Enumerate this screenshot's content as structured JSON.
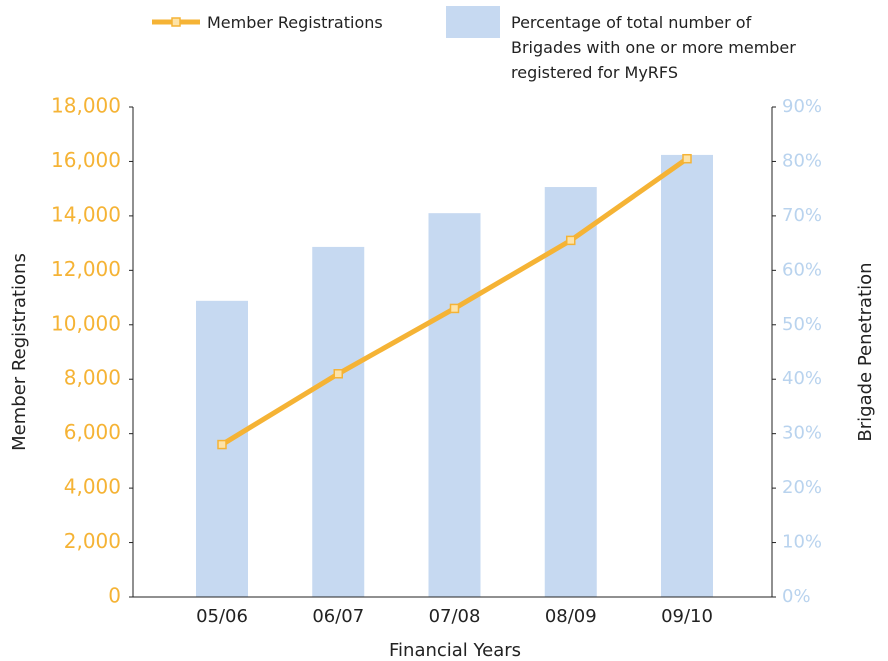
{
  "chart_data": {
    "type": "bar-line",
    "categories": [
      "05/06",
      "06/07",
      "07/08",
      "08/09",
      "09/10"
    ],
    "series": [
      {
        "name": "Member Registrations",
        "type": "line",
        "color": "#f5b335",
        "axis": "y",
        "values": [
          5600,
          8200,
          10600,
          13100,
          16100
        ]
      },
      {
        "name": "Percentage of total number of Brigades with one or more member registered for MyRFS",
        "type": "bar",
        "color": "#c6d9f1",
        "axis": "y2",
        "values": [
          54.4,
          64.3,
          70.5,
          75.3,
          81.2
        ]
      }
    ],
    "xlabel": "Financial Years",
    "ylabel": "Member Registrations",
    "y2label": "Brigade Penetration",
    "ylim": [
      0,
      18000
    ],
    "yticks": [
      0,
      {
        "value": 2000,
        "label": "2,000"
      },
      {
        "value": 4000,
        "label": "4,000"
      },
      {
        "value": 6000,
        "label": "6,000"
      },
      {
        "value": 8000,
        "label": "8,000"
      },
      {
        "value": 10000,
        "label": "10,000"
      },
      {
        "value": 12000,
        "label": "12,000"
      },
      {
        "value": 14000,
        "label": "14,000"
      },
      {
        "value": 16000,
        "label": "16,000"
      },
      {
        "value": 18000,
        "label": "18,000"
      }
    ],
    "y2lim": [
      0,
      90
    ],
    "y2ticks": [
      {
        "value": 0,
        "label": "0%"
      },
      {
        "value": 10,
        "label": "10%"
      },
      {
        "value": 20,
        "label": "20%"
      },
      {
        "value": 30,
        "label": "30%"
      },
      {
        "value": 40,
        "label": "40%"
      },
      {
        "value": 50,
        "label": "50%"
      },
      {
        "value": 60,
        "label": "60%"
      },
      {
        "value": 70,
        "label": "70%"
      },
      {
        "value": 80,
        "label": "80%"
      },
      {
        "value": 90,
        "label": "90%"
      }
    ],
    "ytick_color": "#f5b335",
    "y2tick_color": "#b9d3ee",
    "grid": false
  }
}
